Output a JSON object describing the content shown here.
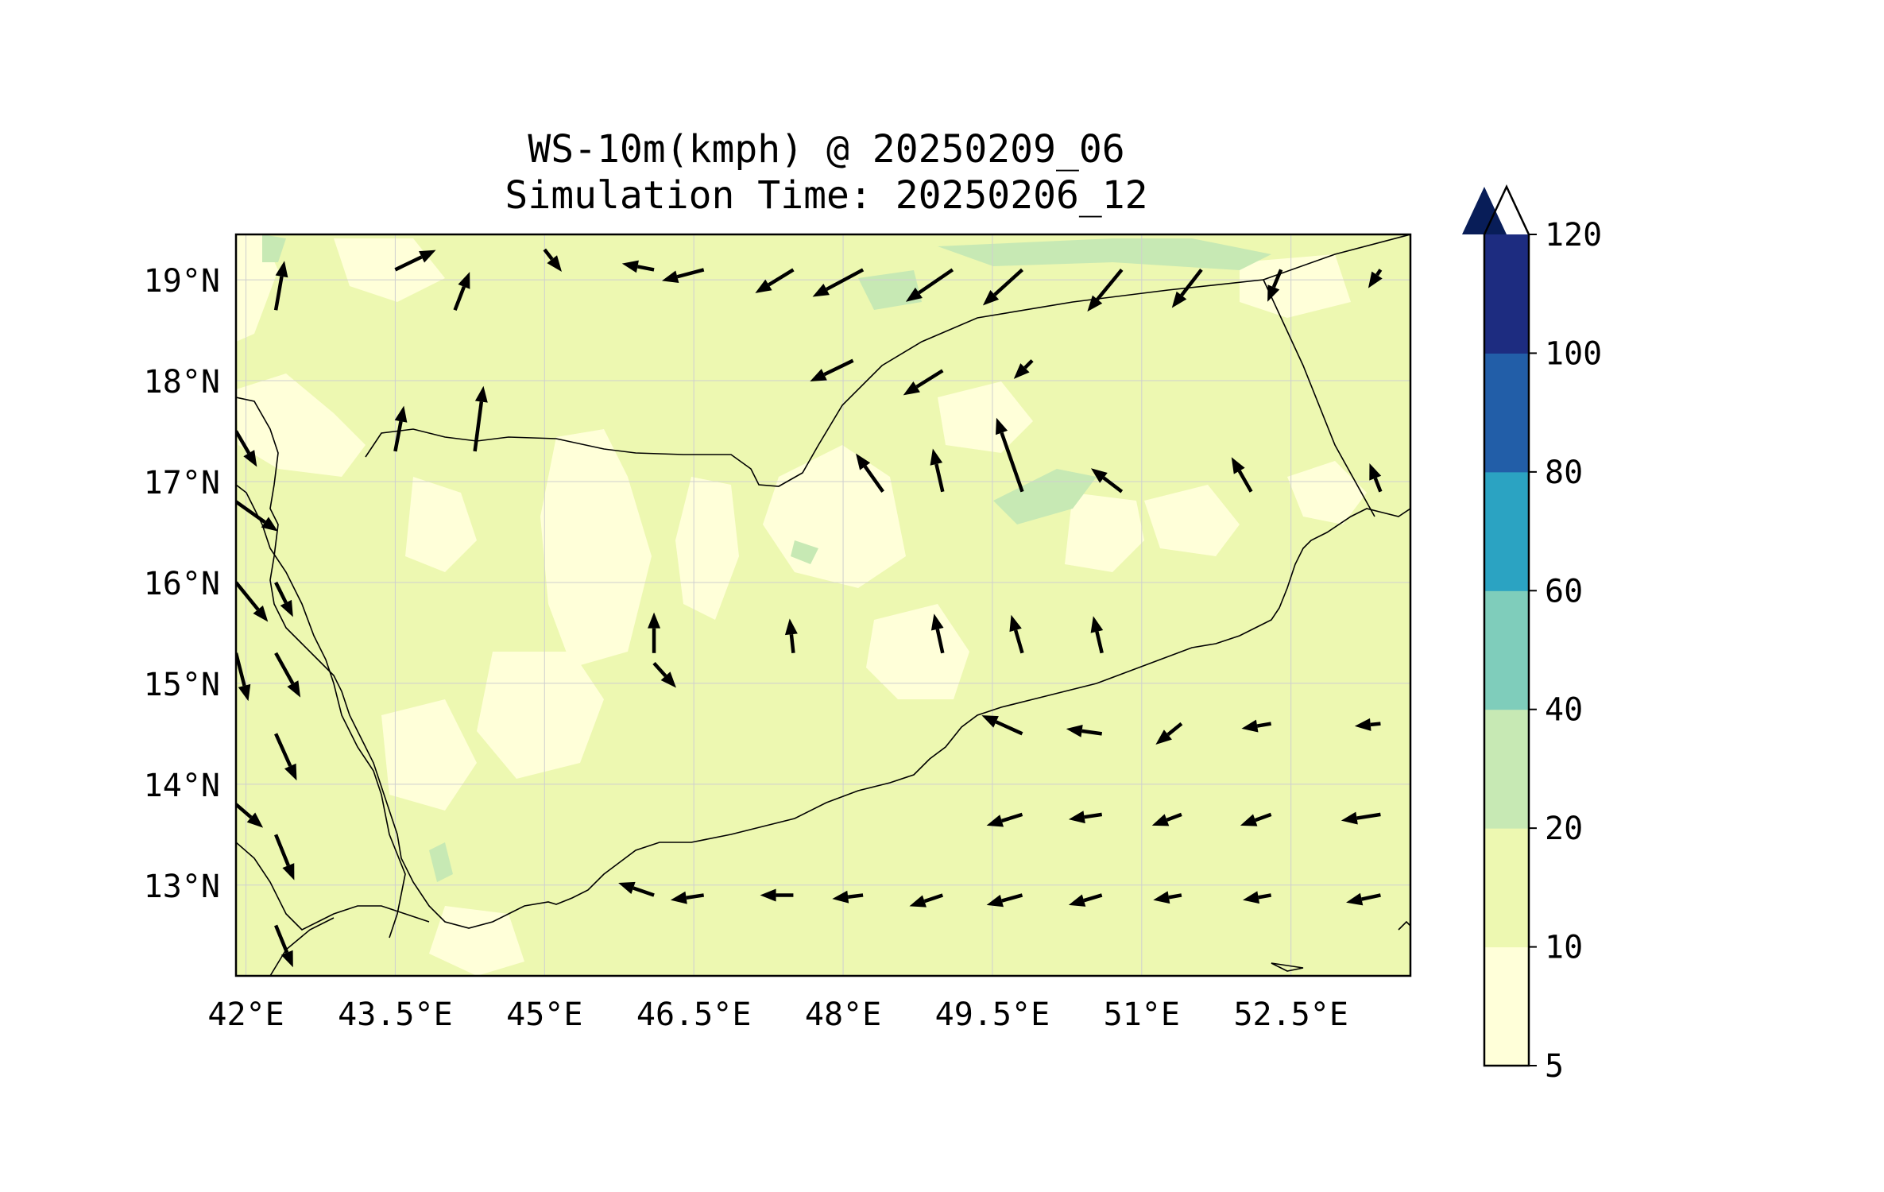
{
  "title": {
    "line1": "WS-10m(kmph) @ 20250209_06",
    "line2": "Simulation Time: 20250206_12"
  },
  "map": {
    "lon_range": [
      41.9,
      53.7
    ],
    "lat_range": [
      12.1,
      19.45
    ],
    "lon_ticks": [
      {
        "value": 42.0,
        "label": "42°E"
      },
      {
        "value": 43.5,
        "label": "43.5°E"
      },
      {
        "value": 45.0,
        "label": "45°E"
      },
      {
        "value": 46.5,
        "label": "46.5°E"
      },
      {
        "value": 48.0,
        "label": "48°E"
      },
      {
        "value": 49.5,
        "label": "49.5°E"
      },
      {
        "value": 51.0,
        "label": "51°E"
      },
      {
        "value": 52.5,
        "label": "52.5°E"
      }
    ],
    "lat_ticks": [
      {
        "value": 19,
        "label": "19°N"
      },
      {
        "value": 18,
        "label": "18°N"
      },
      {
        "value": 17,
        "label": "17°N"
      },
      {
        "value": 16,
        "label": "16°N"
      },
      {
        "value": 15,
        "label": "15°N"
      },
      {
        "value": 14,
        "label": "14°N"
      },
      {
        "value": 13,
        "label": "13°N"
      }
    ],
    "gridlines": true,
    "background_color": "#edf8b1",
    "field_colors": {
      "low": "#ffffd9",
      "mid": "#edf8b1",
      "high": "#c7e9b4"
    },
    "wind_vectors": [
      {
        "lon": 41.9,
        "lat": 17.5,
        "u": 17,
        "v": -29
      },
      {
        "lon": 41.9,
        "lat": 16.8,
        "u": 34,
        "v": -24
      },
      {
        "lon": 41.9,
        "lat": 16.0,
        "u": 26,
        "v": -32
      },
      {
        "lon": 41.9,
        "lat": 15.3,
        "u": 10,
        "v": -39
      },
      {
        "lon": 41.9,
        "lat": 13.8,
        "u": 22,
        "v": -19
      },
      {
        "lon": 42.3,
        "lat": 18.7,
        "u": 7,
        "v": 40
      },
      {
        "lon": 42.3,
        "lat": 16.0,
        "u": 14,
        "v": -28
      },
      {
        "lon": 42.3,
        "lat": 15.3,
        "u": 20,
        "v": -36
      },
      {
        "lon": 42.3,
        "lat": 14.5,
        "u": 17,
        "v": -38
      },
      {
        "lon": 42.3,
        "lat": 13.5,
        "u": 15,
        "v": -37
      },
      {
        "lon": 42.3,
        "lat": 12.6,
        "u": 14,
        "v": -34
      },
      {
        "lon": 43.5,
        "lat": 19.1,
        "u": 33,
        "v": 16
      },
      {
        "lon": 43.5,
        "lat": 17.3,
        "u": 7,
        "v": 37
      },
      {
        "lon": 44.3,
        "lat": 17.3,
        "u": 7,
        "v": 53
      },
      {
        "lon": 44.1,
        "lat": 18.7,
        "u": 12,
        "v": 31
      },
      {
        "lon": 45.0,
        "lat": 19.3,
        "u": 14,
        "v": -18
      },
      {
        "lon": 46.1,
        "lat": 19.1,
        "u": -26,
        "v": 5
      },
      {
        "lon": 46.6,
        "lat": 19.1,
        "u": -34,
        "v": -9
      },
      {
        "lon": 47.5,
        "lat": 19.1,
        "u": -31,
        "v": -19
      },
      {
        "lon": 48.2,
        "lat": 19.1,
        "u": -41,
        "v": -22
      },
      {
        "lon": 49.1,
        "lat": 19.1,
        "u": -38,
        "v": -26
      },
      {
        "lon": 49.8,
        "lat": 19.1,
        "u": -32,
        "v": -29
      },
      {
        "lon": 50.8,
        "lat": 19.1,
        "u": -28,
        "v": -34
      },
      {
        "lon": 51.6,
        "lat": 19.1,
        "u": -24,
        "v": -31
      },
      {
        "lon": 52.4,
        "lat": 19.1,
        "u": -11,
        "v": -26
      },
      {
        "lon": 53.4,
        "lat": 19.1,
        "u": -10,
        "v": -15
      },
      {
        "lon": 48.1,
        "lat": 18.2,
        "u": -35,
        "v": -17
      },
      {
        "lon": 49.0,
        "lat": 18.1,
        "u": -32,
        "v": -20
      },
      {
        "lon": 49.9,
        "lat": 18.2,
        "u": -15,
        "v": -15
      },
      {
        "lon": 49.8,
        "lat": 16.9,
        "u": -21,
        "v": 60
      },
      {
        "lon": 50.8,
        "lat": 16.9,
        "u": -25,
        "v": 19
      },
      {
        "lon": 48.4,
        "lat": 16.9,
        "u": -22,
        "v": 31
      },
      {
        "lon": 49.0,
        "lat": 16.9,
        "u": -8,
        "v": 35
      },
      {
        "lon": 52.1,
        "lat": 16.9,
        "u": -16,
        "v": 28
      },
      {
        "lon": 53.4,
        "lat": 16.9,
        "u": -9,
        "v": 23
      },
      {
        "lon": 46.1,
        "lat": 15.3,
        "u": 0,
        "v": 33
      },
      {
        "lon": 46.1,
        "lat": 15.2,
        "u": 18,
        "v": -20
      },
      {
        "lon": 47.5,
        "lat": 15.3,
        "u": -3,
        "v": 28
      },
      {
        "lon": 49.0,
        "lat": 15.3,
        "u": -7,
        "v": 32
      },
      {
        "lon": 49.8,
        "lat": 15.3,
        "u": -9,
        "v": 31
      },
      {
        "lon": 50.6,
        "lat": 15.3,
        "u": -7,
        "v": 30
      },
      {
        "lon": 49.8,
        "lat": 14.5,
        "u": -33,
        "v": 15
      },
      {
        "lon": 50.6,
        "lat": 14.5,
        "u": -29,
        "v": 4
      },
      {
        "lon": 51.4,
        "lat": 14.6,
        "u": -21,
        "v": -17
      },
      {
        "lon": 52.3,
        "lat": 14.6,
        "u": -24,
        "v": -4
      },
      {
        "lon": 53.4,
        "lat": 14.6,
        "u": -21,
        "v": -2
      },
      {
        "lon": 49.8,
        "lat": 13.7,
        "u": -29,
        "v": -9
      },
      {
        "lon": 50.6,
        "lat": 13.7,
        "u": -27,
        "v": -4
      },
      {
        "lon": 51.4,
        "lat": 13.7,
        "u": -24,
        "v": -9
      },
      {
        "lon": 52.3,
        "lat": 13.7,
        "u": -25,
        "v": -9
      },
      {
        "lon": 53.4,
        "lat": 13.7,
        "u": -32,
        "v": -5
      },
      {
        "lon": 46.1,
        "lat": 12.9,
        "u": -29,
        "v": 10
      },
      {
        "lon": 46.6,
        "lat": 12.9,
        "u": -27,
        "v": -4
      },
      {
        "lon": 47.5,
        "lat": 12.9,
        "u": -27,
        "v": 0
      },
      {
        "lon": 48.2,
        "lat": 12.9,
        "u": -25,
        "v": -3
      },
      {
        "lon": 49.0,
        "lat": 12.9,
        "u": -27,
        "v": -9
      },
      {
        "lon": 49.8,
        "lat": 12.9,
        "u": -29,
        "v": -8
      },
      {
        "lon": 50.6,
        "lat": 12.9,
        "u": -27,
        "v": -8
      },
      {
        "lon": 51.4,
        "lat": 12.9,
        "u": -23,
        "v": -4
      },
      {
        "lon": 52.3,
        "lat": 12.9,
        "u": -23,
        "v": -4
      },
      {
        "lon": 53.4,
        "lat": 12.9,
        "u": -28,
        "v": -6
      }
    ]
  },
  "colorbar": {
    "label_ticks": [
      "120",
      "100",
      "80",
      "60",
      "40",
      "20",
      "10",
      "5"
    ],
    "levels": [
      {
        "from": 5,
        "to": 10,
        "color": "#ffffd9"
      },
      {
        "from": 10,
        "to": 20,
        "color": "#edf8b1"
      },
      {
        "from": 20,
        "to": 40,
        "color": "#c7e9b4"
      },
      {
        "from": 40,
        "to": 60,
        "color": "#7fcdbb"
      },
      {
        "from": 60,
        "to": 80,
        "color": "#2ba3c2"
      },
      {
        "from": 80,
        "to": 100,
        "color": "#225ea8"
      },
      {
        "from": 100,
        "to": 120,
        "color": "#1d2c80"
      }
    ],
    "extend_color": "#081d58",
    "extend": "max"
  }
}
